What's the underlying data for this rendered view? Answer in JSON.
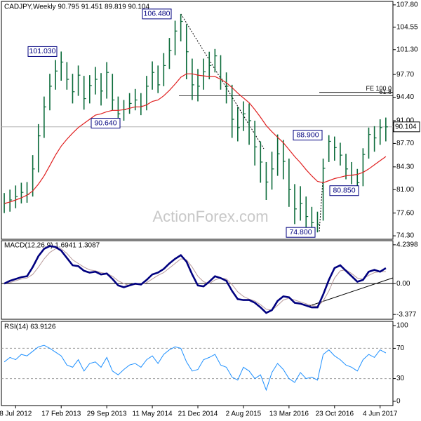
{
  "chart_data": [
    {
      "type": "ohlc",
      "title": "CADJPY,Weekly  90.795 91.451 89.819 90.104",
      "watermark": "ActionForex.com",
      "color": "#0b6b3a",
      "x": [
        2,
        6,
        10,
        14,
        18,
        22,
        26,
        30,
        34,
        38,
        42,
        46,
        50,
        54,
        58,
        62,
        66,
        70,
        74,
        78,
        82,
        86,
        90,
        94,
        98,
        102,
        106,
        110,
        114,
        118,
        122,
        126,
        130,
        134,
        138,
        142,
        146,
        150,
        154,
        158,
        162,
        166,
        170,
        174,
        178,
        182,
        186,
        190,
        194,
        198,
        202,
        206,
        210,
        214,
        218,
        222,
        226,
        230,
        234,
        238,
        242,
        246,
        250,
        254,
        258,
        262,
        266,
        270
      ],
      "high": [
        80.5,
        81.0,
        81.6,
        82.0,
        82.1,
        86.0,
        90.5,
        94.5,
        97.8,
        99.8,
        101.03,
        99.5,
        97.8,
        99.0,
        97.5,
        97.6,
        98.8,
        97.9,
        99.5,
        97.8,
        94.5,
        94.0,
        95.0,
        95.6,
        95.0,
        97.5,
        99.6,
        99.0,
        100.8,
        103.0,
        105.5,
        106.48,
        105.0,
        100.0,
        98.5,
        100.0,
        101.0,
        101.4,
        100.5,
        98.0,
        96.2,
        93.0,
        93.8,
        93.5,
        91.0,
        88.0,
        85.0,
        86.5,
        89.0,
        88.2,
        85.5,
        81.8,
        81.5,
        80.0,
        78.5,
        77.8,
        85.5,
        88.9,
        88.7,
        87.8,
        86.2,
        85.0,
        84.0,
        87.0,
        90.0,
        90.2,
        91.2,
        91.451
      ],
      "low": [
        77.6,
        77.8,
        78.3,
        79.0,
        79.1,
        80.0,
        83.5,
        88.5,
        92.5,
        95.5,
        96.8,
        95.5,
        93.5,
        94.6,
        92.6,
        93.5,
        94.8,
        93.2,
        94.2,
        92.5,
        90.64,
        91.0,
        92.0,
        92.5,
        91.8,
        92.5,
        95.5,
        95.0,
        96.0,
        98.5,
        100.5,
        102.5,
        97.0,
        94.0,
        93.8,
        95.5,
        97.0,
        98.0,
        95.5,
        93.5,
        88.5,
        88.0,
        89.5,
        87.5,
        84.5,
        82.0,
        79.5,
        81.0,
        83.0,
        82.5,
        78.5,
        76.0,
        76.5,
        75.5,
        75.0,
        74.8,
        76.5,
        85.0,
        85.2,
        84.5,
        82.5,
        81.8,
        80.85,
        81.5,
        85.5,
        86.5,
        87.5,
        88.0
      ],
      "close": [
        79.0,
        79.5,
        80.0,
        80.6,
        80.3,
        84.0,
        88.8,
        93.0,
        96.0,
        98.2,
        99.5,
        97.0,
        95.2,
        97.6,
        94.2,
        96.1,
        97.0,
        95.3,
        98.0,
        94.0,
        92.0,
        92.6,
        93.5,
        94.0,
        93.1,
        96.0,
        98.0,
        96.2,
        99.0,
        101.2,
        104.0,
        105.4,
        101.0,
        96.2,
        96.0,
        98.1,
        99.0,
        100.4,
        97.0,
        96.0,
        91.2,
        90.0,
        92.0,
        91.0,
        87.2,
        85.0,
        82.1,
        84.0,
        86.2,
        85.1,
        81.0,
        78.2,
        79.0,
        77.1,
        76.2,
        76.0,
        84.1,
        88.0,
        87.1,
        86.0,
        84.0,
        83.1,
        82.0,
        86.1,
        89.0,
        88.5,
        90.0,
        90.104
      ],
      "ma": {
        "color": "#e02020",
        "values": [
          79.0,
          79.2,
          79.5,
          79.8,
          80.2,
          80.8,
          81.8,
          83.0,
          84.5,
          86.0,
          87.3,
          88.3,
          89.2,
          90.0,
          90.6,
          91.2,
          91.8,
          92.0,
          92.3,
          92.5,
          92.5,
          92.6,
          92.8,
          93.0,
          93.0,
          93.3,
          93.8,
          94.0,
          94.6,
          95.4,
          96.3,
          97.3,
          97.8,
          97.8,
          97.6,
          97.5,
          97.4,
          97.4,
          97.0,
          96.5,
          95.8,
          95.0,
          94.3,
          93.6,
          92.6,
          91.5,
          90.3,
          89.4,
          88.6,
          87.8,
          86.8,
          85.8,
          84.9,
          83.9,
          83.0,
          82.2,
          82.0,
          82.3,
          82.6,
          82.8,
          83.0,
          83.1,
          83.2,
          83.5,
          84.0,
          84.6,
          85.2,
          85.8
        ]
      },
      "xlim": [
        0,
        275
      ],
      "ylim": [
        73.8,
        108.3
      ],
      "yticks": [
        {
          "value": 107.8,
          "label": "107.80"
        },
        104.55,
        {
          "value": 101.3,
          "label": "101.30"
        },
        {
          "value": 97.7,
          "label": "97.70"
        },
        {
          "value": 94.4,
          "label": "94.40"
        },
        {
          "value": 91.0,
          "label": "91.00"
        },
        {
          "value": 87.7,
          "label": "87.70"
        },
        {
          "value": 84.3,
          "label": "84.30"
        },
        {
          "value": 81.0,
          "label": "81.00"
        },
        {
          "value": 77.6,
          "label": "77.60"
        },
        {
          "value": 74.3,
          "label": "74.30"
        }
      ],
      "annotations": [
        {
          "value": 106.48,
          "label": "106.480"
        },
        {
          "value": 101.03,
          "label": "101.030"
        },
        {
          "value": 90.64,
          "label": "90.640"
        },
        {
          "value": 88.9,
          "label": "88.900"
        },
        {
          "value": 80.85,
          "label": "80.850"
        },
        {
          "value": 74.8,
          "label": "74.800"
        }
      ],
      "levels": [
        {
          "value": 95.1,
          "label": "FE 100.0"
        },
        {
          "value": 94.6,
          "label": "61.8"
        }
      ],
      "last_price": 90.104
    },
    {
      "type": "macd",
      "title": "MACD(12,26,9) 1.6941 1.3087",
      "series": [
        {
          "color": "#00007f",
          "values": [
            0.0,
            0.3,
            0.5,
            0.7,
            0.8,
            1.8,
            3.0,
            3.8,
            4.1,
            4.0,
            3.6,
            2.8,
            2.0,
            1.9,
            1.4,
            1.2,
            1.3,
            1.0,
            1.1,
            0.5,
            -0.2,
            -0.4,
            -0.2,
            0.0,
            -0.1,
            0.4,
            1.0,
            1.2,
            1.6,
            2.2,
            2.7,
            3.1,
            2.4,
            1.0,
            -0.2,
            -0.3,
            0.2,
            0.8,
            0.6,
            0.3,
            -0.8,
            -1.7,
            -1.8,
            -1.8,
            -2.1,
            -2.6,
            -3.2,
            -2.9,
            -1.9,
            -1.4,
            -1.5,
            -2.1,
            -2.2,
            -2.4,
            -2.6,
            -2.6,
            -1.2,
            0.4,
            1.7,
            2.0,
            1.4,
            0.8,
            0.2,
            0.4,
            1.3,
            1.5,
            1.3,
            1.6941
          ]
        },
        {
          "color": "#b89a9a",
          "values": [
            0.0,
            0.1,
            0.3,
            0.5,
            0.6,
            1.0,
            1.8,
            2.7,
            3.4,
            3.8,
            3.8,
            3.3,
            2.6,
            2.2,
            1.8,
            1.5,
            1.4,
            1.2,
            1.1,
            0.8,
            0.3,
            0.0,
            -0.2,
            -0.1,
            -0.1,
            0.1,
            0.5,
            0.9,
            1.2,
            1.7,
            2.2,
            2.7,
            2.6,
            1.8,
            0.8,
            0.2,
            0.0,
            0.4,
            0.6,
            0.5,
            -0.1,
            -0.9,
            -1.4,
            -1.7,
            -1.9,
            -2.3,
            -2.8,
            -2.9,
            -2.4,
            -1.8,
            -1.6,
            -1.8,
            -2.0,
            -2.2,
            -2.4,
            -2.5,
            -1.9,
            -0.8,
            0.6,
            1.4,
            1.5,
            1.1,
            0.6,
            0.5,
            0.9,
            1.2,
            1.3,
            1.3087
          ]
        }
      ],
      "ylim": [
        -3.9,
        4.69
      ],
      "yticks": [
        4.2398,
        {
          "value": 0,
          "label": "0.00"
        },
        -3.377
      ],
      "zero_line": true
    },
    {
      "type": "rsi",
      "title": "RSI(14) 63.9126",
      "color": "#1e90ff",
      "values": [
        52,
        58,
        55,
        62,
        60,
        66,
        72,
        74,
        70,
        65,
        60,
        48,
        45,
        55,
        40,
        50,
        52,
        45,
        58,
        40,
        35,
        42,
        48,
        50,
        45,
        55,
        60,
        50,
        62,
        68,
        72,
        70,
        52,
        40,
        42,
        55,
        58,
        62,
        48,
        45,
        32,
        28,
        45,
        40,
        30,
        35,
        15,
        38,
        50,
        42,
        30,
        25,
        38,
        30,
        32,
        28,
        62,
        68,
        60,
        55,
        48,
        45,
        40,
        55,
        62,
        58,
        68,
        63.9126
      ],
      "ylim": [
        -5.6,
        105.6
      ],
      "yticks": [
        100,
        70,
        30,
        0
      ],
      "levels": [
        70,
        30
      ],
      "xlim": [
        0,
        275
      ],
      "xticks": [
        {
          "value": 10,
          "label": "8 Jul 2012"
        },
        {
          "value": 42,
          "label": "17 Feb 2013"
        },
        {
          "value": 74,
          "label": "29 Sep 2013"
        },
        {
          "value": 106,
          "label": "11 May 2014"
        },
        {
          "value": 138,
          "label": "21 Dec 2014"
        },
        {
          "value": 170,
          "label": "2 Aug 2015"
        },
        {
          "value": 202,
          "label": "13 Mar 2016"
        },
        {
          "value": 234,
          "label": "23 Oct 2016"
        },
        {
          "value": 266,
          "label": "4 Jun 2017"
        }
      ]
    }
  ]
}
